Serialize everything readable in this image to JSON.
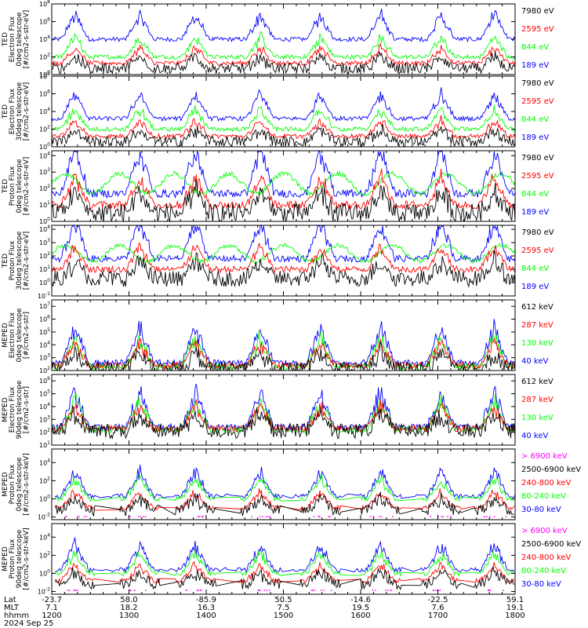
{
  "chart_data": [
    {
      "type": "line",
      "ylabel": [
        "TED",
        "Electron Flux",
        "0deg telescope",
        "[#/cm2-s-str-eV]"
      ],
      "ytick_labels": [
        "10^0",
        "10^2",
        "10^4",
        "10^6",
        "10^8"
      ],
      "ylim_exponent": [
        0,
        8
      ],
      "baseline": {
        "blue": 4.0,
        "green": 2.0,
        "red": 1.3,
        "black": 0.7
      },
      "series": [
        {
          "name": "7980 eV",
          "color": "#000000"
        },
        {
          "name": "2595 eV",
          "color": "#ff0000"
        },
        {
          "name": "844 eV",
          "color": "#00ff00"
        },
        {
          "name": "189 eV",
          "color": "#0000ff"
        }
      ]
    },
    {
      "type": "line",
      "ylabel": [
        "TED",
        "Electron Flux",
        "30deg telescope",
        "[#/cm2-s-str-eV]"
      ],
      "ytick_labels": [
        "10^0",
        "10^2",
        "10^4",
        "10^6",
        "10^8"
      ],
      "ylim_exponent": [
        0,
        8
      ],
      "baseline": {
        "blue": 3.2,
        "green": 2.0,
        "red": 1.2,
        "black": 0.6
      },
      "series": [
        {
          "name": "7980 eV",
          "color": "#000000"
        },
        {
          "name": "2595 eV",
          "color": "#ff0000"
        },
        {
          "name": "844 eV",
          "color": "#00ff00"
        },
        {
          "name": "189 eV",
          "color": "#0000ff"
        }
      ]
    },
    {
      "type": "line",
      "ylabel": [
        "TED",
        "Proton Flux",
        "0deg telescope",
        "[#/cm2-s-str-eV]"
      ],
      "ytick_labels": [
        "10^0",
        "10^1",
        "10^2",
        "10^3",
        "10^4"
      ],
      "ylim_exponent": [
        0,
        4.3
      ],
      "baseline": {
        "blue": 1.7,
        "green": 2.3,
        "red": 1.0,
        "black": 0.5
      },
      "series": [
        {
          "name": "7980 eV",
          "color": "#000000"
        },
        {
          "name": "2595 eV",
          "color": "#ff0000"
        },
        {
          "name": "844 eV",
          "color": "#00ff00"
        },
        {
          "name": "189 eV",
          "color": "#0000ff"
        }
      ]
    },
    {
      "type": "line",
      "ylabel": [
        "TED",
        "Proton Flux",
        "30deg telescope",
        "[#/cm2-s-str-eV]"
      ],
      "ytick_labels": [
        "10^-1",
        "10^0",
        "10^1",
        "10^2",
        "10^3",
        "10^4"
      ],
      "ylim_exponent": [
        -1,
        4.3
      ],
      "baseline": {
        "blue": 1.8,
        "green": 2.2,
        "red": 1.0,
        "black": 0.3
      },
      "series": [
        {
          "name": "7980 eV",
          "color": "#000000"
        },
        {
          "name": "2595 eV",
          "color": "#ff0000"
        },
        {
          "name": "844 eV",
          "color": "#00ff00"
        },
        {
          "name": "189 eV",
          "color": "#0000ff"
        }
      ]
    },
    {
      "type": "line",
      "ylabel": [
        "MEPED",
        "Electron Flux",
        "0deg telescope",
        "[#/cm2-s-str]"
      ],
      "ytick_labels": [
        "10^2",
        "10^3",
        "10^4",
        "10^5",
        "10^6",
        "10^7"
      ],
      "ylim_exponent": [
        2,
        7.5
      ],
      "baseline": {
        "blue": 2.6,
        "green": 2.3,
        "red": 2.4,
        "black": 2.1
      },
      "series": [
        {
          "name": "612 keV",
          "color": "#000000"
        },
        {
          "name": "287 keV",
          "color": "#ff0000"
        },
        {
          "name": "130 keV",
          "color": "#00ff00"
        },
        {
          "name": "40 keV",
          "color": "#0000ff"
        }
      ]
    },
    {
      "type": "line",
      "ylabel": [
        "MEPED",
        "Electron Flux",
        "90deg telescope",
        "[#/cm2-s-str]"
      ],
      "ytick_labels": [
        "10^1",
        "10^2",
        "10^3",
        "10^4",
        "10^5",
        "10^6"
      ],
      "ylim_exponent": [
        1,
        6.5
      ],
      "baseline": {
        "blue": 2.4,
        "green": 2.2,
        "red": 2.3,
        "black": 2.1
      },
      "series": [
        {
          "name": "612 keV",
          "color": "#000000"
        },
        {
          "name": "287 keV",
          "color": "#ff0000"
        },
        {
          "name": "130 keV",
          "color": "#00ff00"
        },
        {
          "name": "40 keV",
          "color": "#0000ff"
        }
      ]
    },
    {
      "type": "line",
      "ylabel": [
        "MEPED",
        "Proton Flux",
        "0deg telescope",
        "[#/cm2-s-str-keV]"
      ],
      "ytick_labels": [
        "10^-2",
        "10^0",
        "10^2",
        "10^4"
      ],
      "ylim_exponent": [
        -2.3,
        5.5
      ],
      "baseline": {
        "blue": 0.3,
        "green": 0.0,
        "red": -1.0,
        "black": -1.3
      },
      "series": [
        {
          "name": "> 6900 keV",
          "color": "#ff00ff"
        },
        {
          "name": "2500-6900 keV",
          "color": "#000000"
        },
        {
          "name": "240-800 keV",
          "color": "#ff0000"
        },
        {
          "name": "80-240 keV",
          "color": "#00ff00"
        },
        {
          "name": "30-80 keV",
          "color": "#0000ff"
        }
      ]
    },
    {
      "type": "line",
      "ylabel": [
        "MEPED",
        "Proton Flux",
        "90deg telescope",
        "[#/cm2-s-str-keV]"
      ],
      "ytick_labels": [
        "10^-2",
        "10^0",
        "10^2",
        "10^4"
      ],
      "ylim_exponent": [
        -2.3,
        5.5
      ],
      "baseline": {
        "blue": 0.4,
        "green": 0.0,
        "red": -0.8,
        "black": -1.2
      },
      "series": [
        {
          "name": "> 6900 keV",
          "color": "#ff00ff"
        },
        {
          "name": "2500-6900 keV",
          "color": "#000000"
        },
        {
          "name": "240-800 keV",
          "color": "#ff0000"
        },
        {
          "name": "80-240 keV",
          "color": "#00ff00"
        },
        {
          "name": "30-80 keV",
          "color": "#0000ff"
        }
      ]
    }
  ],
  "time_axis": {
    "hhmm_start": 1200,
    "hhmm_end": 1800,
    "row_labels": [
      "Lat",
      "MLT",
      "hhmm"
    ],
    "ticks": [
      {
        "lat": "-23.7",
        "mlt": "7.1",
        "hhmm": "1200"
      },
      {
        "lat": "58.0",
        "mlt": "18.2",
        "hhmm": "1300"
      },
      {
        "lat": "-85.9",
        "mlt": "16.3",
        "hhmm": "1400"
      },
      {
        "lat": "50.5",
        "mlt": "7.5",
        "hhmm": "1500"
      },
      {
        "lat": "-14.6",
        "mlt": "19.5",
        "hhmm": "1600"
      },
      {
        "lat": "-22.5",
        "mlt": "7.6",
        "hhmm": "1700"
      },
      {
        "lat": "59.1",
        "mlt": "19.1",
        "hhmm": "1800"
      }
    ],
    "date": "2024 Sep 25"
  },
  "pass_centers_hhmm_fraction": [
    0.05,
    0.19,
    0.31,
    0.45,
    0.58,
    0.71,
    0.84,
    0.955
  ]
}
